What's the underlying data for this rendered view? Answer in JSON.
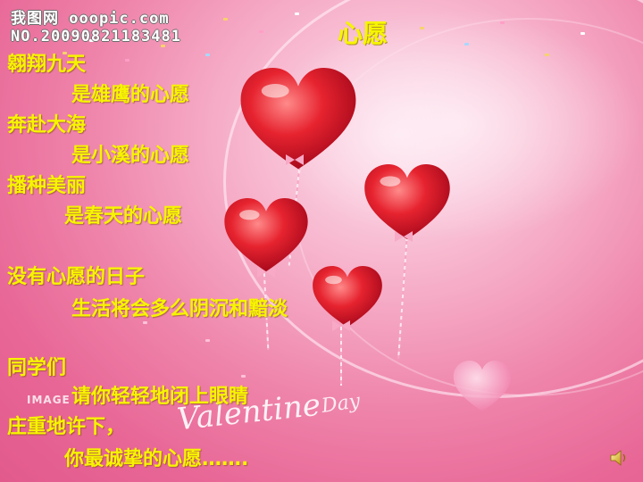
{
  "watermark": {
    "site": "我图网 ooopic.com",
    "number": "NO.20090821183481"
  },
  "slide": {
    "title": "心愿",
    "lines": [
      "翱翔九天",
      "是雄鹰的心愿",
      "奔赴大海",
      "是小溪的心愿",
      "播种美丽",
      "是春天的心愿",
      "没有心愿的日子",
      "生活将会多么阴沉和黯淡",
      "同学们",
      "请你轻轻地闭上眼睛",
      "庄重地许下，",
      "你最诚挚的心愿……."
    ]
  },
  "background": {
    "valentine_text": "Valentine",
    "day_text": "Day",
    "image_text": "IMAGE"
  },
  "colors": {
    "text_yellow": "#f7f400",
    "bg_pink": "#e86796",
    "heart_red": "#d8102a"
  },
  "icons": {
    "speaker": "speaker-icon"
  }
}
